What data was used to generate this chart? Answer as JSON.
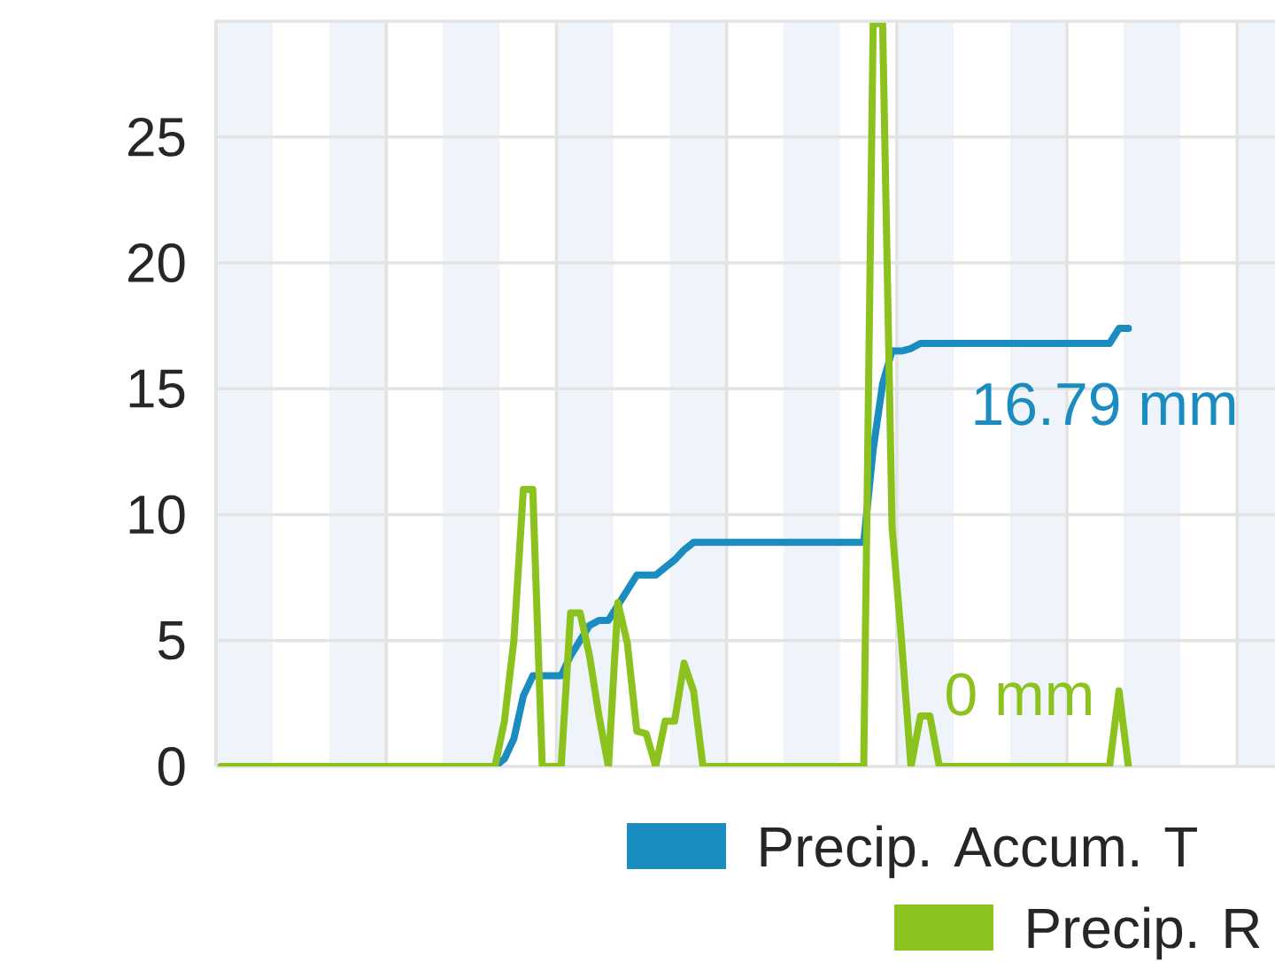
{
  "chart_data": {
    "type": "line",
    "categories": [
      null,
      null,
      null,
      null,
      null,
      null,
      null,
      null,
      null,
      null,
      null,
      null,
      null,
      null,
      null,
      null,
      null,
      null,
      null,
      null,
      null,
      null,
      null,
      null,
      null,
      null,
      null,
      null,
      null,
      null,
      null,
      null,
      null,
      null,
      null,
      null,
      null,
      null,
      null,
      null,
      null,
      null,
      null,
      null,
      null,
      null,
      null,
      null,
      null,
      null,
      null,
      null,
      null,
      null,
      null,
      null,
      null,
      null,
      null,
      null,
      null,
      null,
      null,
      null,
      null,
      null,
      null,
      null,
      null,
      null,
      null,
      null,
      null,
      null,
      null,
      null,
      null,
      null,
      null,
      null,
      null,
      null,
      null,
      null,
      null,
      null,
      null,
      null,
      null,
      null,
      null,
      null,
      null,
      null,
      null,
      null,
      null,
      null,
      null,
      null,
      null,
      null,
      null,
      null,
      null,
      null,
      null,
      null,
      null,
      null,
      null,
      null
    ],
    "series": [
      {
        "name": "Precip. Accum. T",
        "color": "#1a8cbf",
        "values": [
          null,
          null,
          null,
          null,
          null,
          null,
          null,
          null,
          null,
          null,
          null,
          null,
          null,
          null,
          null,
          null,
          null,
          null,
          null,
          null,
          null,
          null,
          null,
          null,
          null,
          null,
          null,
          null,
          null,
          0,
          0.3,
          1.1,
          2.8,
          3.6,
          3.6,
          3.6,
          3.6,
          4.4,
          5.0,
          5.6,
          5.8,
          5.8,
          6.4,
          7.0,
          7.6,
          7.6,
          7.6,
          7.9,
          8.2,
          8.6,
          8.9,
          8.9,
          8.9,
          8.9,
          8.9,
          8.9,
          8.9,
          8.9,
          8.9,
          8.9,
          8.9,
          8.9,
          8.9,
          8.9,
          8.9,
          8.9,
          8.9,
          8.9,
          8.9,
          12.6,
          15.2,
          16.5,
          16.5,
          16.6,
          16.8,
          16.8,
          16.8,
          16.8,
          16.8,
          16.8,
          16.8,
          16.8,
          16.8,
          16.8,
          16.8,
          16.8,
          16.8,
          16.8,
          16.8,
          16.8,
          16.8,
          16.8,
          16.8,
          16.8,
          16.8,
          17.4,
          17.4,
          null,
          null,
          null,
          null,
          null,
          null,
          null,
          null,
          null,
          null,
          null,
          null,
          null,
          null,
          null
        ]
      },
      {
        "name": "Precip. R",
        "color": "#8cc21e",
        "values": [
          0,
          0,
          0,
          0,
          0,
          0,
          0,
          0,
          0,
          0,
          0,
          0,
          0,
          0,
          0,
          0,
          0,
          0,
          0,
          0,
          0,
          0,
          0,
          0,
          0,
          0,
          0,
          0,
          0,
          0,
          1.8,
          5.0,
          11.0,
          11.0,
          0,
          0,
          0,
          6.1,
          6.1,
          4.4,
          2.0,
          0,
          6.5,
          4.9,
          1.4,
          1.3,
          0,
          1.8,
          1.8,
          4.1,
          3.0,
          0,
          0,
          0,
          0,
          0,
          0,
          0,
          0,
          0,
          0,
          0,
          0,
          0,
          0,
          0,
          0,
          0,
          0,
          29.5,
          29.5,
          9.5,
          5.0,
          0,
          2.0,
          2.0,
          0,
          0,
          0,
          0,
          0,
          0,
          0,
          0,
          0,
          0,
          0,
          0,
          0,
          0,
          0,
          0,
          0,
          0,
          0,
          3.0,
          0,
          null,
          null,
          null,
          null,
          null,
          null,
          null,
          null,
          null,
          null,
          null,
          null,
          null,
          null,
          null
        ]
      }
    ],
    "ylim": [
      0,
      29.6
    ],
    "yticks": [
      0,
      5,
      10,
      15,
      20,
      25
    ],
    "tick_labels": "y",
    "grid": true,
    "legend": "bottom",
    "annotations": [
      "16.79 mm",
      "0 mm"
    ]
  }
}
